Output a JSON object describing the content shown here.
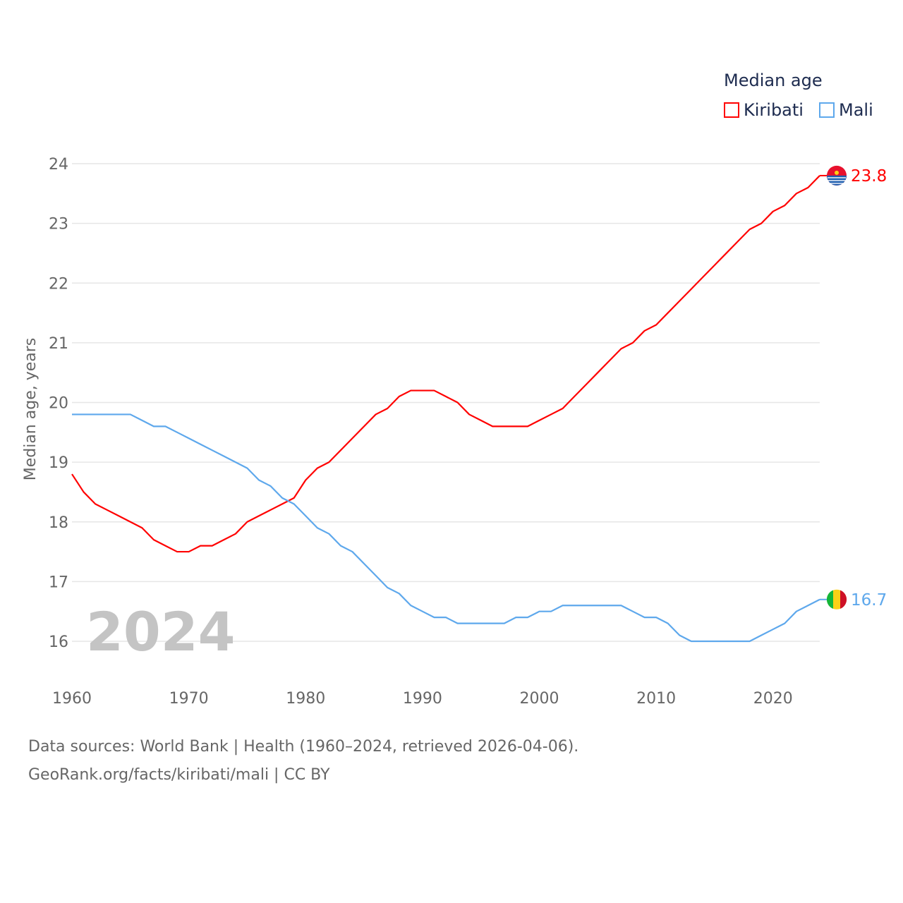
{
  "chart_data": {
    "type": "line",
    "title": "Median age",
    "ylabel": "Median age, years",
    "xlabel": "",
    "xlim": [
      1960,
      2024
    ],
    "ylim": [
      16,
      24
    ],
    "x_ticks": [
      "1960",
      "1970",
      "1980",
      "1990",
      "2000",
      "2010",
      "2020"
    ],
    "y_ticks": [
      "16",
      "17",
      "18",
      "19",
      "20",
      "21",
      "22",
      "23",
      "24"
    ],
    "grid": true,
    "legend_position": "top-right",
    "year_label": "2024",
    "x": [
      1960,
      1961,
      1962,
      1963,
      1964,
      1965,
      1966,
      1967,
      1968,
      1969,
      1970,
      1971,
      1972,
      1973,
      1974,
      1975,
      1976,
      1977,
      1978,
      1979,
      1980,
      1981,
      1982,
      1983,
      1984,
      1985,
      1986,
      1987,
      1988,
      1989,
      1990,
      1991,
      1992,
      1993,
      1994,
      1995,
      1996,
      1997,
      1998,
      1999,
      2000,
      2001,
      2002,
      2003,
      2004,
      2005,
      2006,
      2007,
      2008,
      2009,
      2010,
      2011,
      2012,
      2013,
      2014,
      2015,
      2016,
      2017,
      2018,
      2019,
      2020,
      2021,
      2022,
      2023,
      2024
    ],
    "series": [
      {
        "name": "Kiribati",
        "color": "#ff0000",
        "end_label": "23.8",
        "values": [
          18.8,
          18.5,
          18.3,
          18.2,
          18.1,
          18.0,
          17.9,
          17.7,
          17.6,
          17.5,
          17.5,
          17.6,
          17.6,
          17.7,
          17.8,
          18.0,
          18.1,
          18.2,
          18.3,
          18.4,
          18.7,
          18.9,
          19.0,
          19.2,
          19.4,
          19.6,
          19.8,
          19.9,
          20.1,
          20.2,
          20.2,
          20.2,
          20.1,
          20.0,
          19.8,
          19.7,
          19.6,
          19.6,
          19.6,
          19.6,
          19.7,
          19.8,
          19.9,
          20.1,
          20.3,
          20.5,
          20.7,
          20.9,
          21.0,
          21.2,
          21.3,
          21.5,
          21.7,
          21.9,
          22.1,
          22.3,
          22.5,
          22.7,
          22.9,
          23.0,
          23.2,
          23.3,
          23.5,
          23.6,
          23.8
        ]
      },
      {
        "name": "Mali",
        "color": "#5ea8ec",
        "end_label": "16.7",
        "values": [
          19.8,
          19.8,
          19.8,
          19.8,
          19.8,
          19.8,
          19.7,
          19.6,
          19.6,
          19.5,
          19.4,
          19.3,
          19.2,
          19.1,
          19.0,
          18.9,
          18.7,
          18.6,
          18.4,
          18.3,
          18.1,
          17.9,
          17.8,
          17.6,
          17.5,
          17.3,
          17.1,
          16.9,
          16.8,
          16.6,
          16.5,
          16.4,
          16.4,
          16.3,
          16.3,
          16.3,
          16.3,
          16.3,
          16.4,
          16.4,
          16.5,
          16.5,
          16.6,
          16.6,
          16.6,
          16.6,
          16.6,
          16.6,
          16.5,
          16.4,
          16.4,
          16.3,
          16.1,
          16.0,
          16.0,
          16.0,
          16.0,
          16.0,
          16.0,
          16.1,
          16.2,
          16.3,
          16.5,
          16.6,
          16.7
        ]
      }
    ]
  },
  "footer": {
    "line1": "Data sources: World Bank | Health (1960–2024, retrieved 2026-04-06).",
    "line2": "GeoRank.org/facts/kiribati/mali | CC BY"
  }
}
